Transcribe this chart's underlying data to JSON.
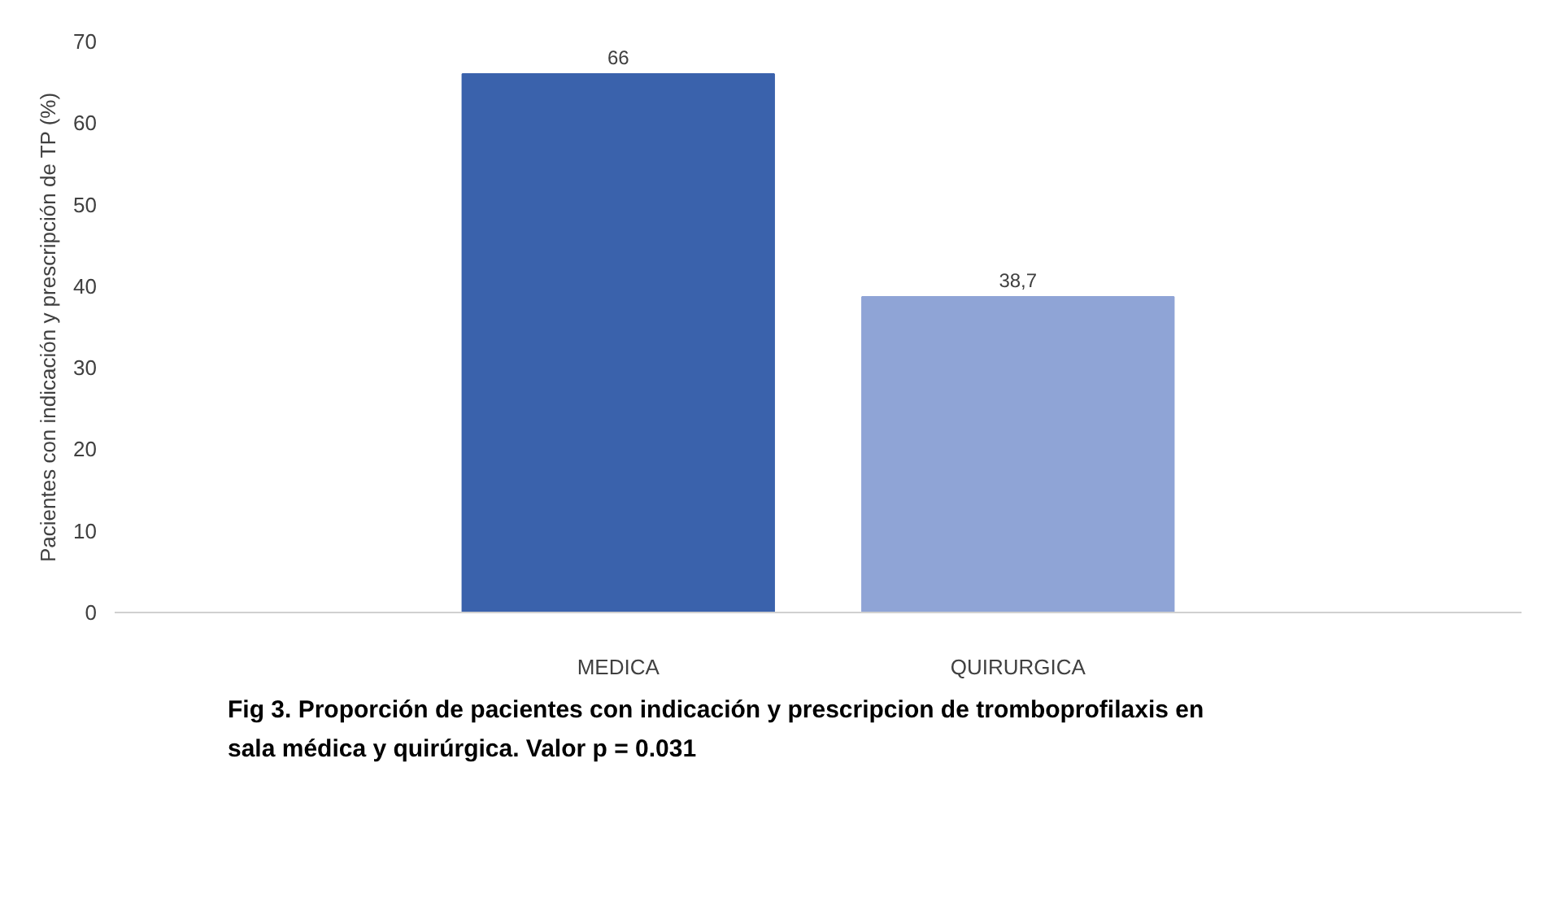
{
  "chart_data": {
    "type": "bar",
    "ylabel": "Pacientes con indicación y prescripción de TP (%)",
    "categories": [
      "MEDICA",
      "QUIRURGICA"
    ],
    "values": [
      66,
      38.7
    ],
    "colors": [
      "#3a62ac",
      "#8fa4d6"
    ],
    "value_labels": [
      "66",
      "38,7"
    ],
    "ylim": [
      0,
      70
    ],
    "yticks": [
      0,
      10,
      20,
      30,
      40,
      50,
      60,
      70
    ],
    "grid": false,
    "annotations": [
      "Fig 3. Proporción de pacientes con indicación y prescripcion de tromboprofilaxis en sala médica y quirúrgica. Valor p = 0.031"
    ]
  }
}
